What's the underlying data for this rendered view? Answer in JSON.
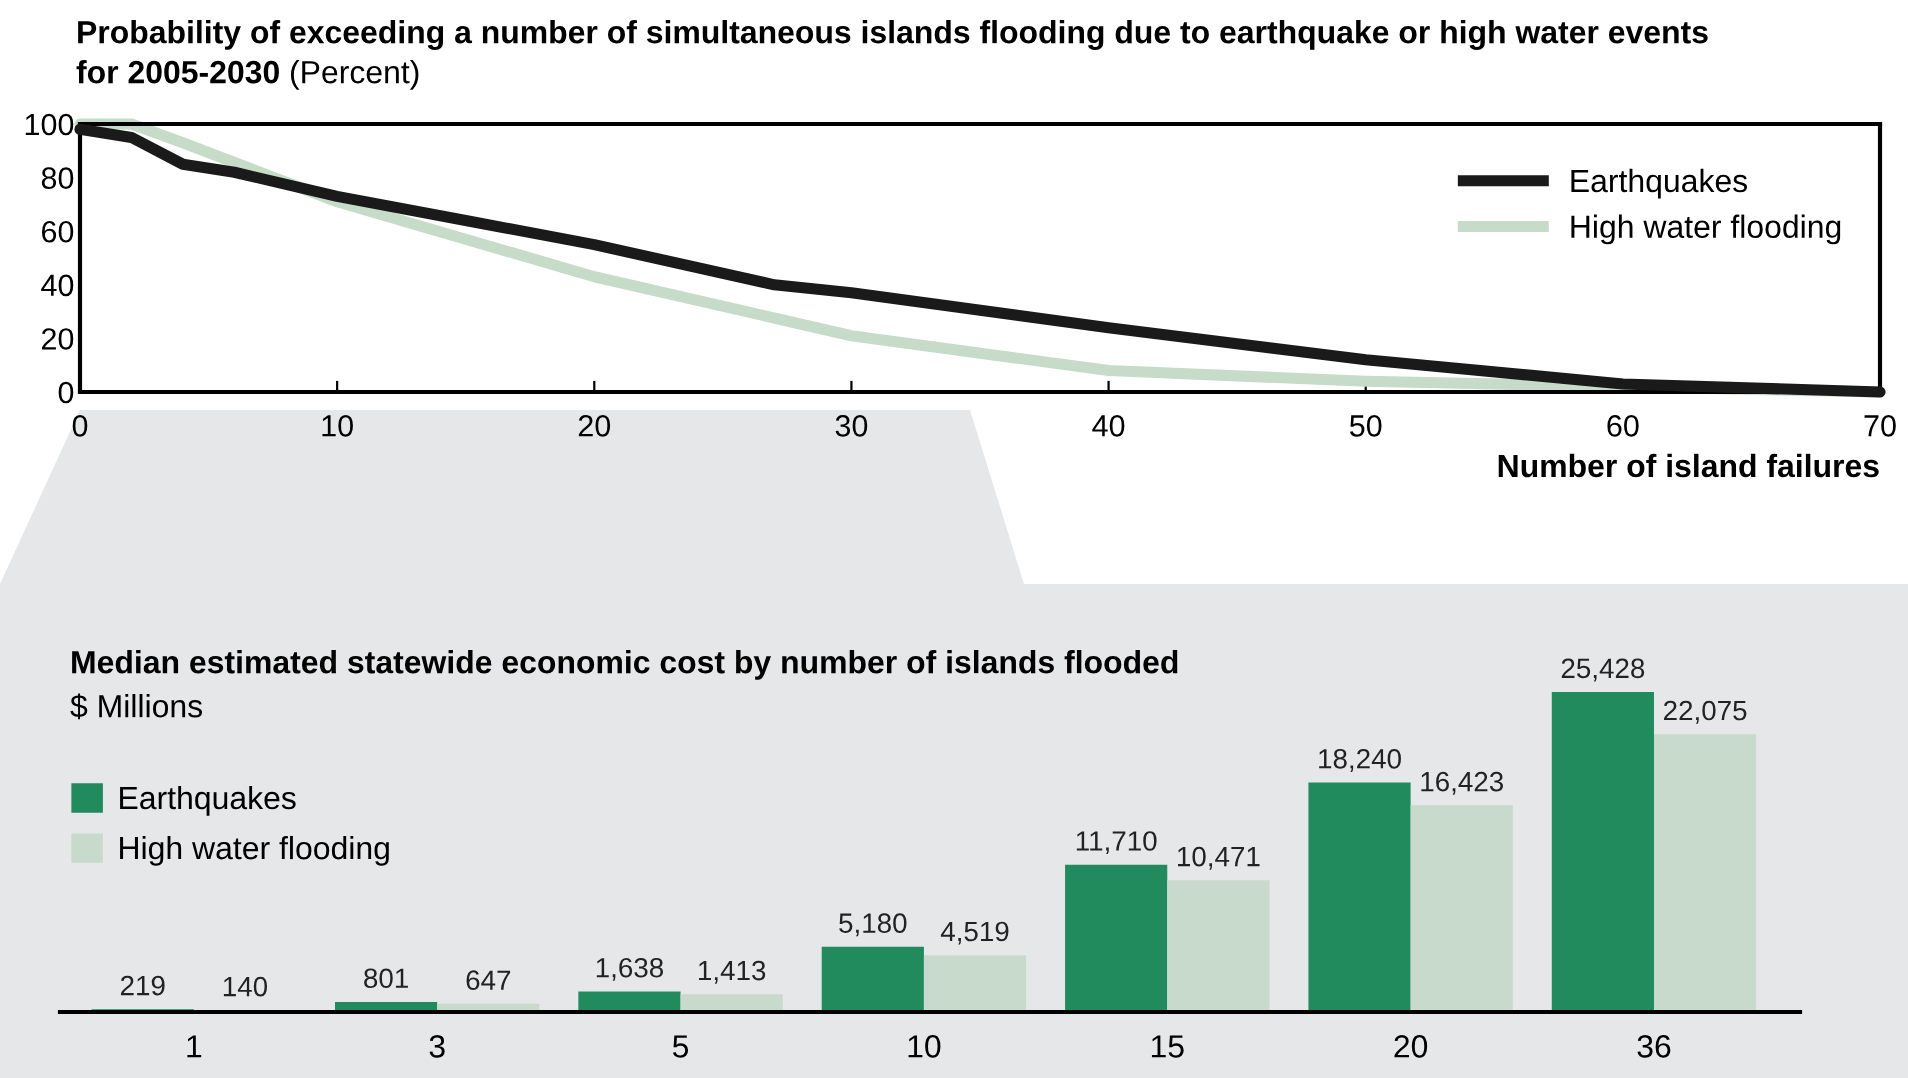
{
  "chart_data": [
    {
      "type": "line",
      "title": "Probability of exceeding a number of simultaneous islands flooding due to earthquake or high water events for 2005-2030",
      "subtitle": "(Percent)",
      "xlabel": "Number of island failures",
      "xlim": [
        0,
        70
      ],
      "xticks": [
        0,
        10,
        20,
        30,
        40,
        50,
        60,
        70
      ],
      "ylim": [
        0,
        100
      ],
      "yticks": [
        0,
        20,
        40,
        60,
        80,
        100
      ],
      "grid": false,
      "legend": "top right",
      "series": [
        {
          "name": "Earthquakes",
          "color": "#1a1a1a",
          "x": [
            0,
            2,
            4,
            6,
            10,
            15,
            20,
            27,
            30,
            40,
            50,
            60,
            70
          ],
          "values": [
            98,
            95,
            85,
            82,
            73,
            64,
            55,
            40,
            37,
            24,
            12,
            3,
            0
          ]
        },
        {
          "name": "High water flooding",
          "color": "#c6dcc9",
          "x": [
            0,
            2,
            4,
            10,
            20,
            30,
            40,
            50,
            60,
            70
          ],
          "values": [
            100,
            100,
            93,
            71,
            43,
            21,
            8,
            4,
            2,
            0
          ]
        }
      ]
    },
    {
      "type": "bar",
      "title": "Median estimated statewide economic cost by number of islands flooded",
      "subtitle": "$ Millions",
      "legend": "top left",
      "categories": [
        "1",
        "3",
        "5",
        "10",
        "15",
        "20",
        "36"
      ],
      "series": [
        {
          "name": "Earthquakes",
          "color": "#228b5e",
          "values": [
            219,
            801,
            1638,
            5180,
            11710,
            18240,
            25428
          ],
          "value_labels": [
            "219",
            "801",
            "1,638",
            "5,180",
            "11,710",
            "18,240",
            "25,428"
          ]
        },
        {
          "name": "High water flooding",
          "color": "#c8dacb",
          "values": [
            140,
            647,
            1413,
            4519,
            10471,
            16423,
            22075
          ],
          "value_labels": [
            "140",
            "647",
            "1,413",
            "4,519",
            "10,471",
            "16,423",
            "22,075"
          ]
        }
      ]
    }
  ]
}
